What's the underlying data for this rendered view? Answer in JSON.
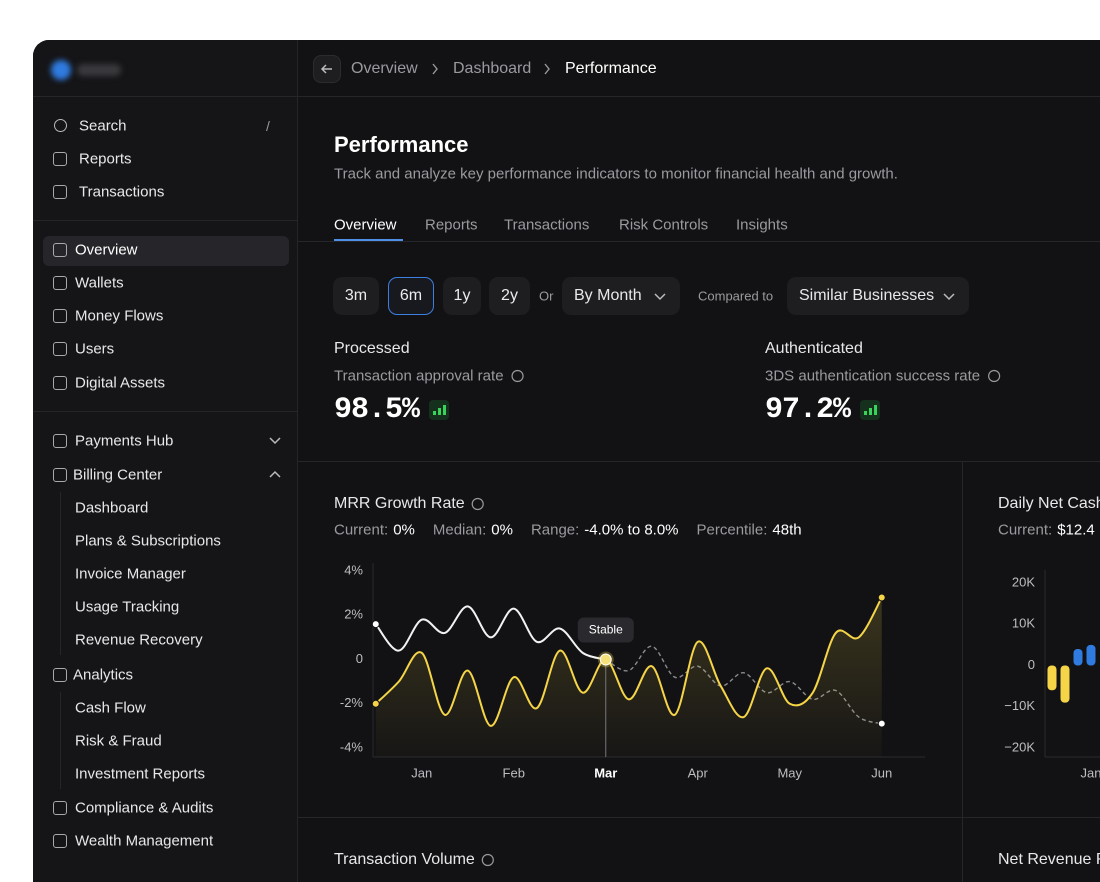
{
  "sidebar": {
    "search": {
      "label": "Search",
      "shortcut": "/"
    },
    "top_items": [
      "Reports",
      "Transactions"
    ],
    "main_items": [
      "Overview",
      "Wallets",
      "Money Flows",
      "Users",
      "Digital Assets"
    ],
    "groups": [
      {
        "label": "Payments Hub"
      },
      {
        "label": "Billing Center",
        "items": [
          "Dashboard",
          "Plans & Subscriptions",
          "Invoice Manager",
          "Usage Tracking",
          "Revenue Recovery"
        ]
      },
      {
        "label": "Analytics",
        "items": [
          "Cash Flow",
          "Risk & Fraud",
          "Investment Reports"
        ]
      }
    ],
    "bottom_items": [
      "Compliance & Audits",
      "Wealth Management"
    ]
  },
  "breadcrumb": [
    "Overview",
    "Dashboard",
    "Performance"
  ],
  "page": {
    "title": "Performance",
    "subtitle": "Track and analyze key performance indicators to monitor financial health and growth.",
    "tabs": [
      "Overview",
      "Reports",
      "Transactions",
      "Risk Controls",
      "Insights"
    ],
    "ranges": [
      "3m",
      "6m",
      "1y",
      "2y"
    ],
    "or": "Or",
    "grouping": "By Month",
    "compared_label": "Compared to",
    "compared_value": "Similar Businesses"
  },
  "kpis": [
    {
      "label": "Processed",
      "caption": "Transaction approval rate",
      "value": "98.5%"
    },
    {
      "label": "Authenticated",
      "caption": "3DS authentication success rate",
      "value": "97.2%"
    }
  ],
  "chart_data": [
    {
      "type": "line",
      "title": "MRR Growth Rate",
      "stats": [
        {
          "label": "Current:",
          "value": "0%"
        },
        {
          "label": "Median:",
          "value": "0%"
        },
        {
          "label": "Range:",
          "value": "-4.0% to 8.0%"
        },
        {
          "label": "Percentile:",
          "value": "48th"
        }
      ],
      "x": [
        0.5,
        0.75,
        1,
        1.25,
        1.5,
        1.75,
        2,
        2.25,
        2.5,
        2.75,
        3,
        3.25,
        3.5,
        3.75,
        4,
        4.25,
        4.5,
        4.75,
        5,
        5.25,
        5.5,
        5.75,
        6
      ],
      "xlim": [
        0.47,
        6.47
      ],
      "xticks": [
        {
          "value": 1,
          "label": "Jan"
        },
        {
          "value": 2,
          "label": "Feb"
        },
        {
          "value": 3,
          "label": "Mar"
        },
        {
          "value": 4,
          "label": "Apr"
        },
        {
          "value": 5,
          "label": "May"
        },
        {
          "value": 6,
          "label": "Jun"
        }
      ],
      "ylim": [
        -4,
        4
      ],
      "yticks": [
        {
          "value": 4,
          "label": "4%"
        },
        {
          "value": 2,
          "label": "2%"
        },
        0,
        {
          "value": -2,
          "label": "-2%"
        },
        {
          "value": -4,
          "label": "-4%"
        }
      ],
      "series": [
        {
          "color": "#f2f2f2",
          "values": [
            1.6,
            0.4,
            1.8,
            1.2,
            2.4,
            1.0,
            2.3,
            0.8,
            1.4,
            0.3,
            0,
            null,
            null,
            null,
            null,
            null,
            null,
            null,
            null,
            null,
            null,
            null,
            null
          ]
        },
        {
          "color": "#8a8a8f",
          "dashed": true,
          "values": [
            null,
            null,
            null,
            null,
            null,
            null,
            null,
            null,
            null,
            null,
            0,
            -0.5,
            0.6,
            -0.8,
            -0.3,
            -1.2,
            -0.6,
            -1.5,
            -1.0,
            -1.8,
            -1.4,
            -2.6,
            -2.9
          ]
        },
        {
          "color": "#f5d547",
          "area": true,
          "values": [
            -2.0,
            -1.0,
            0.3,
            -2.5,
            -0.5,
            -3.0,
            -0.8,
            -2.2,
            0.4,
            -1.5,
            0,
            -1.8,
            -0.3,
            -2.5,
            0.8,
            -1.2,
            -2.6,
            -0.4,
            -2.0,
            -1.5,
            1.2,
            1.0,
            2.8
          ]
        }
      ],
      "annotations": [
        {
          "text": "Stable",
          "x": 3,
          "y": 0
        }
      ]
    },
    {
      "type": "bar",
      "title": "Daily Net Cash",
      "stats": [
        {
          "label": "Current:",
          "value": "$12.4"
        }
      ],
      "categories": [
        null,
        null,
        null,
        "Jan"
      ],
      "values": [
        -6,
        -9,
        4,
        5
      ],
      "colors": [
        "#f5d547",
        "#f5d547",
        "#2f7be0",
        "#2f7be0"
      ],
      "ylim": [
        -24,
        24
      ],
      "yticks": [
        {
          "value": 20,
          "label": "20K"
        },
        {
          "value": 10,
          "label": "10K"
        },
        0,
        {
          "value": -10,
          "label": "−10K"
        },
        {
          "value": -20,
          "label": "−20K"
        }
      ]
    }
  ],
  "bottom_cards": [
    "Transaction Volume",
    "Net Revenue R"
  ]
}
